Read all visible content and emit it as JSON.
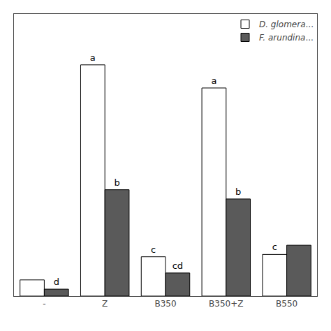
{
  "chart_data": {
    "type": "bar",
    "categories": [
      "-",
      "Z",
      "B350",
      "B350+Z",
      "B550"
    ],
    "series": [
      {
        "name": "D. glomera...",
        "color": "#ffffff",
        "values": [
          0.07,
          1.0,
          0.17,
          0.9,
          0.18
        ],
        "labels": [
          null,
          "a",
          "c",
          "a",
          "c"
        ]
      },
      {
        "name": "F. arundina...",
        "color": "#5a5a5a",
        "values": [
          0.03,
          0.46,
          0.1,
          0.42,
          0.22
        ],
        "labels": [
          "d",
          "b",
          "cd",
          "b",
          null
        ]
      }
    ],
    "ylim": [
      0,
      1.22
    ],
    "grid": false,
    "legend": "upper right",
    "tick_labels": "x"
  }
}
